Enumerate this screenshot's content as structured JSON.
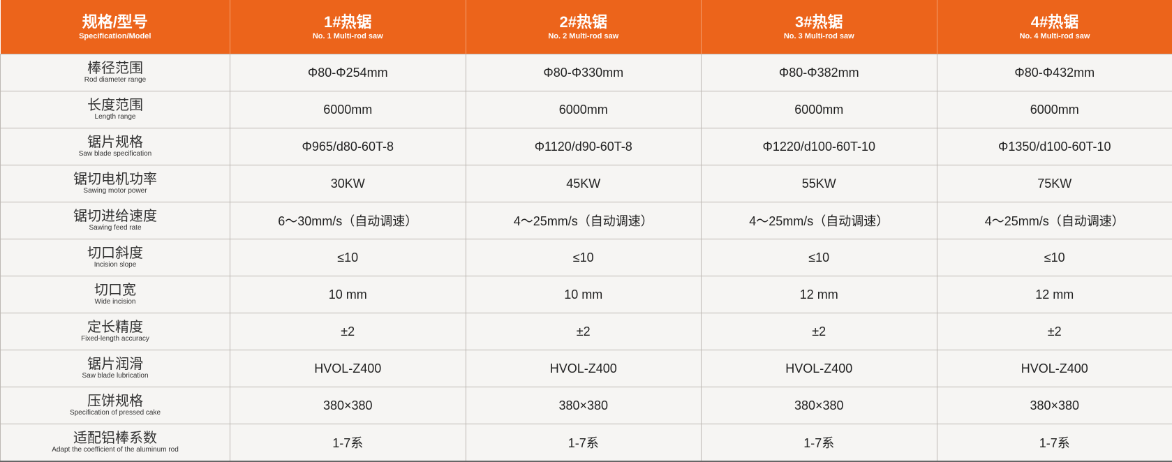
{
  "colors": {
    "header_bg": "#EC641B",
    "row_bg": "#f6f5f3",
    "border": "#bdb8b3"
  },
  "header": {
    "spec": {
      "cn": "规格/型号",
      "en": "Specification/Model"
    },
    "models": [
      {
        "cn": "1#热锯",
        "en": "No. 1 Multi-rod saw"
      },
      {
        "cn": "2#热锯",
        "en": "No. 2 Multi-rod saw"
      },
      {
        "cn": "3#热锯",
        "en": "No. 3 Multi-rod saw"
      },
      {
        "cn": "4#热锯",
        "en": "No. 4 Multi-rod saw"
      }
    ]
  },
  "rows": [
    {
      "cn": "棒径范围",
      "en": "Rod diameter range",
      "values": [
        "Φ80-Φ254mm",
        "Φ80-Φ330mm",
        "Φ80-Φ382mm",
        "Φ80-Φ432mm"
      ]
    },
    {
      "cn": "长度范围",
      "en": "Length range",
      "values": [
        "6000mm",
        "6000mm",
        "6000mm",
        "6000mm"
      ]
    },
    {
      "cn": "锯片规格",
      "en": "Saw blade specification",
      "values": [
        "Φ965/d80-60T-8",
        "Φ1120/d90-60T-8",
        "Φ1220/d100-60T-10",
        "Φ1350/d100-60T-10"
      ]
    },
    {
      "cn": "锯切电机功率",
      "en": "Sawing motor power",
      "values": [
        "30KW",
        "45KW",
        "55KW",
        "75KW"
      ]
    },
    {
      "cn": "锯切进给速度",
      "en": "Sawing feed rate",
      "values": [
        "6～30mm/s（自动调速）",
        "4～25mm/s（自动调速）",
        "4～25mm/s（自动调速）",
        "4～25mm/s（自动调速）"
      ]
    },
    {
      "cn": "切口斜度",
      "en": "Incision slope",
      "values": [
        "≤10",
        "≤10",
        "≤10",
        "≤10"
      ]
    },
    {
      "cn": "切口宽",
      "en": "Wide incision",
      "values": [
        "10 mm",
        "10 mm",
        "12 mm",
        "12 mm"
      ]
    },
    {
      "cn": "定长精度",
      "en": "Fixed-length accuracy",
      "values": [
        "±2",
        "±2",
        "±2",
        "±2"
      ]
    },
    {
      "cn": "锯片润滑",
      "en": "Saw blade lubrication",
      "values": [
        "HVOL-Z400",
        "HVOL-Z400",
        "HVOL-Z400",
        "HVOL-Z400"
      ]
    },
    {
      "cn": "压饼规格",
      "en": "Specification of pressed cake",
      "values": [
        "380×380",
        "380×380",
        "380×380",
        "380×380"
      ]
    },
    {
      "cn": "适配铝棒系数",
      "en": "Adapt the coefficient of the aluminum rod",
      "values": [
        "1-7系",
        "1-7系",
        "1-7系",
        "1-7系"
      ]
    }
  ]
}
